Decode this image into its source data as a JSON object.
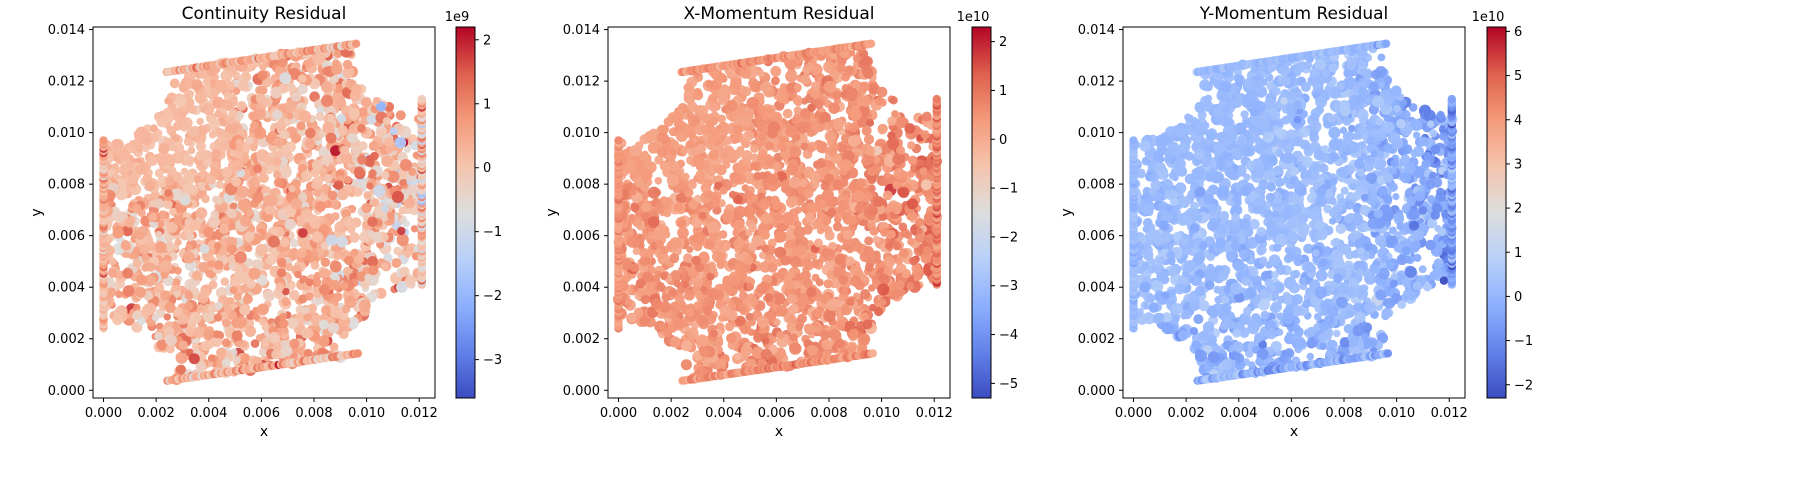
{
  "chart_data": [
    {
      "type": "scatter",
      "title": "Continuity Residual",
      "xlabel": "x",
      "ylabel": "y",
      "xlim": [
        -0.0004,
        0.0126
      ],
      "ylim": [
        -0.0003,
        0.0141
      ],
      "x_ticks": [
        0.0,
        0.002,
        0.004,
        0.006,
        0.008,
        0.01,
        0.012
      ],
      "x_tick_labels": [
        "0.000",
        "0.002",
        "0.004",
        "0.006",
        "0.008",
        "0.010",
        "0.012"
      ],
      "y_ticks": [
        0.0,
        0.002,
        0.004,
        0.006,
        0.008,
        0.01,
        0.012,
        0.014
      ],
      "y_tick_labels": [
        "0.000",
        "0.002",
        "0.004",
        "0.006",
        "0.008",
        "0.010",
        "0.012",
        "0.014"
      ],
      "colorbar": {
        "colormap": "coolwarm",
        "min": -3.6,
        "max": 2.2,
        "ticks": [
          -3,
          -2,
          -1,
          0,
          1,
          2
        ],
        "tick_labels": [
          "−3",
          "−2",
          "−1",
          "0",
          "1",
          "2"
        ],
        "exponent_label": "1e9"
      },
      "field_model": {
        "base": 0.35,
        "spread": 0.8,
        "east_mean": 0.1,
        "east_spread": 1.6,
        "south_mean": 0.3,
        "south_spread": 1.5,
        "seed": 11
      },
      "colors": {
        "base": "#f0b89a"
      }
    },
    {
      "type": "scatter",
      "title": "X-Momentum Residual",
      "xlabel": "x",
      "ylabel": "y",
      "xlim": [
        -0.0004,
        0.0126
      ],
      "ylim": [
        -0.0003,
        0.0141
      ],
      "x_ticks": [
        0.0,
        0.002,
        0.004,
        0.006,
        0.008,
        0.01,
        0.012
      ],
      "x_tick_labels": [
        "0.000",
        "0.002",
        "0.004",
        "0.006",
        "0.008",
        "0.010",
        "0.012"
      ],
      "y_ticks": [
        0.0,
        0.002,
        0.004,
        0.006,
        0.008,
        0.01,
        0.012,
        0.014
      ],
      "y_tick_labels": [
        "0.000",
        "0.002",
        "0.004",
        "0.006",
        "0.008",
        "0.010",
        "0.012",
        "0.014"
      ],
      "colorbar": {
        "colormap": "coolwarm",
        "min": -5.3,
        "max": 2.3,
        "ticks": [
          -5,
          -4,
          -3,
          -2,
          -1,
          0,
          1,
          2
        ],
        "tick_labels": [
          "−5",
          "−4",
          "−3",
          "−2",
          "−1",
          "0",
          "1",
          "2"
        ],
        "exponent_label": "1e10"
      },
      "field_model": {
        "base": 0.45,
        "spread": 0.45,
        "east_mean": 0.8,
        "east_spread": 0.9,
        "south_mean": 0.6,
        "south_spread": 1.0,
        "seed": 23
      },
      "colors": {
        "base": "#ee9a7e"
      }
    },
    {
      "type": "scatter",
      "title": "Y-Momentum Residual",
      "xlabel": "x",
      "ylabel": "y",
      "xlim": [
        -0.0004,
        0.0126
      ],
      "ylim": [
        -0.0003,
        0.0141
      ],
      "x_ticks": [
        0.0,
        0.002,
        0.004,
        0.006,
        0.008,
        0.01,
        0.012
      ],
      "x_tick_labels": [
        "0.000",
        "0.002",
        "0.004",
        "0.006",
        "0.008",
        "0.010",
        "0.012"
      ],
      "y_ticks": [
        0.0,
        0.002,
        0.004,
        0.006,
        0.008,
        0.01,
        0.012,
        0.014
      ],
      "y_tick_labels": [
        "0.000",
        "0.002",
        "0.004",
        "0.006",
        "0.008",
        "0.010",
        "0.012",
        "0.014"
      ],
      "colorbar": {
        "colormap": "coolwarm",
        "min": -2.3,
        "max": 6.1,
        "ticks": [
          -2,
          -1,
          0,
          1,
          2,
          3,
          4,
          5,
          6
        ],
        "tick_labels": [
          "−2",
          "−1",
          "0",
          "1",
          "2",
          "3",
          "4",
          "5",
          "6"
        ],
        "exponent_label": "1e10"
      },
      "field_model": {
        "base": 0.15,
        "spread": 0.45,
        "east_mean": -0.6,
        "east_spread": 1.2,
        "south_mean": -0.5,
        "south_spread": 1.6,
        "seed": 37
      },
      "colors": {
        "base": "#93b5fe"
      }
    }
  ]
}
